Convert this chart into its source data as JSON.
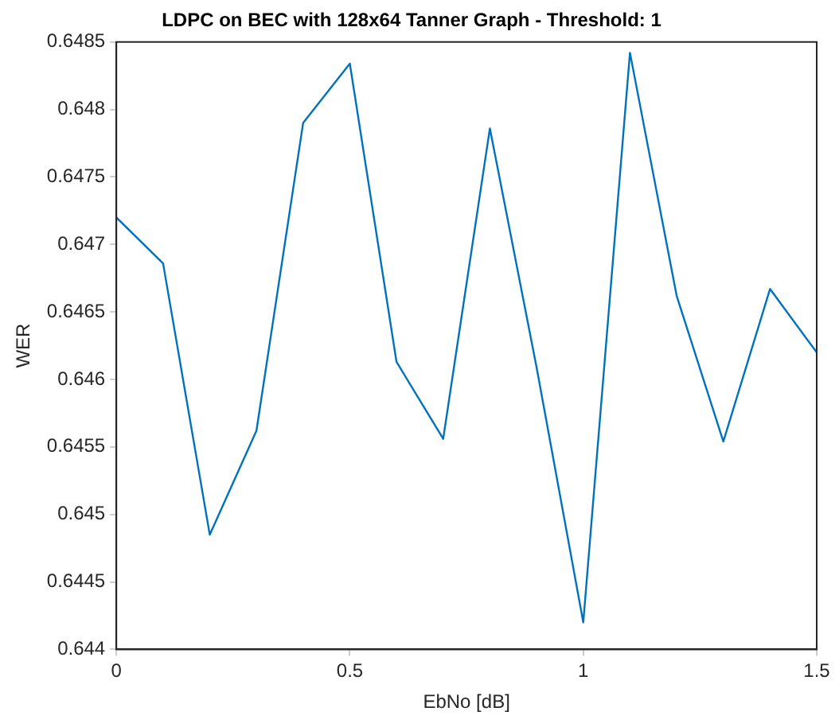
{
  "chart_data": {
    "type": "line",
    "title": "LDPC on BEC with 128x64 Tanner Graph - Threshold: 1",
    "xlabel": "EbNo [dB]",
    "ylabel": "WER",
    "x": [
      0,
      0.1,
      0.2,
      0.3,
      0.4,
      0.5,
      0.6,
      0.7,
      0.8,
      0.9,
      1,
      1.1,
      1.2,
      1.3,
      1.4,
      1.5
    ],
    "series": [
      {
        "color": "#0072bd",
        "values": [
          0.6472,
          0.64686,
          0.64485,
          0.64562,
          0.6479,
          0.64834,
          0.64613,
          0.64556,
          0.64786,
          0.64609,
          0.6442,
          0.64842,
          0.64662,
          0.64554,
          0.64667,
          0.6462
        ]
      }
    ],
    "xlim": [
      0,
      1.5
    ],
    "xticks": [
      0,
      0.5,
      1,
      1.5
    ],
    "ylim": [
      0.644,
      0.6485
    ],
    "yticks": [
      0.644,
      0.6445,
      0.645,
      0.6455,
      0.646,
      0.6465,
      0.647,
      0.6475,
      0.648,
      0.6485
    ],
    "grid": false,
    "legend": false,
    "marker": "none",
    "line_style": "solid"
  }
}
